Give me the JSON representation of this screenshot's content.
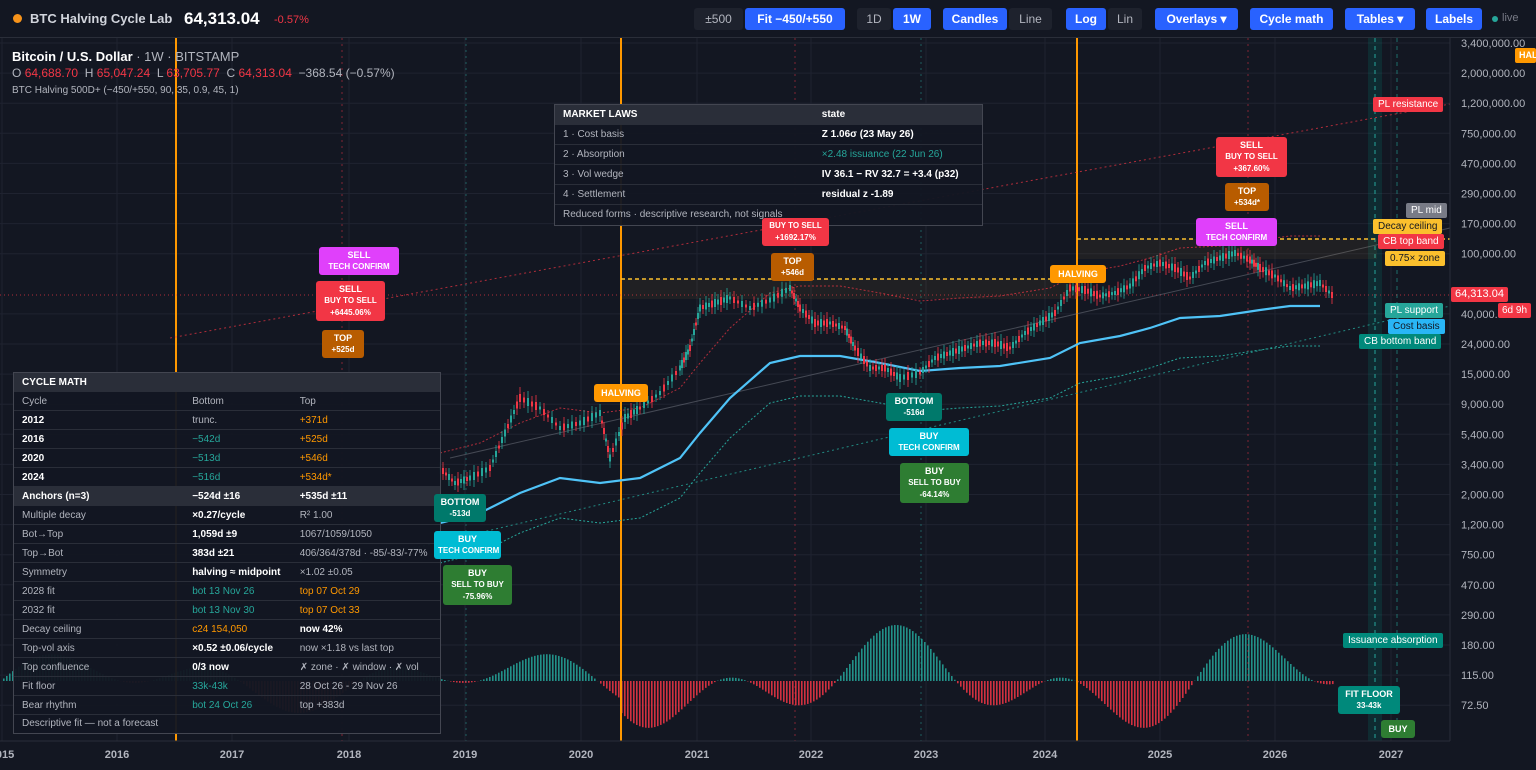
{
  "app": {
    "name": "BTC Halving Cycle Lab",
    "last_price": "64,313.04",
    "last_change": "-0.57%"
  },
  "toolbar": {
    "range_500": "±500",
    "fit": "Fit −450/+550",
    "tf_1d": "1D",
    "tf_1w": "1W",
    "candles": "Candles",
    "line": "Line",
    "log": "Log",
    "lin": "Lin",
    "overlays": "Overlays ▾",
    "cycle_math": "Cycle math",
    "tables": "Tables ▾",
    "labels": "Labels",
    "live": "live"
  },
  "header": {
    "symbol": "Bitcoin / U.S. Dollar",
    "meta": " · 1W · BITSTAMP",
    "o_label": "O",
    "o": "64,688.70",
    "h_label": "H",
    "h": "65,047.24",
    "l_label": "L",
    "l": "63,705.77",
    "c_label": "C",
    "c": "64,313.04",
    "change": "−368.54 (−0.57%)",
    "indicator": "BTC Halving 500D+ (−450/+550, 90, 35, 0.9, 45, 1)"
  },
  "axis": {
    "y_ticks": [
      "3,400,000.00",
      "2,000,000.00",
      "1,200,000.00",
      "750,000.00",
      "470,000.00",
      "290,000.00",
      "170,000.00",
      "100,000.00",
      "64,313.04",
      "40,000.00",
      "24,000.00",
      "15,000.00",
      "9,000.00",
      "5,400.00",
      "3,400.00",
      "2,000.00",
      "1,200.00",
      "750.00",
      "470.00",
      "290.00",
      "180.00",
      "115.00",
      "72.50"
    ],
    "x_ticks": [
      "2015",
      "2016",
      "2017",
      "2018",
      "2019",
      "2020",
      "2021",
      "2022",
      "2023",
      "2024",
      "2025",
      "2026",
      "2027"
    ]
  },
  "right_labels": {
    "pl_resistance": "PL resistance",
    "pl_mid": "PL mid",
    "decay_ceiling": "Decay ceiling",
    "cb_top": "CB top band",
    "zone": "0.75× zone",
    "price": "64,313.04",
    "countdown": "6d 9h",
    "pl_support": "PL support",
    "cost_basis": "Cost basis",
    "cb_bottom": "CB bottom band",
    "issuance": "Issuance absorption",
    "edge_tag": "HAL"
  },
  "market_laws": {
    "header": [
      "MARKET LAWS",
      "state"
    ],
    "rows": [
      [
        "1 · Cost basis",
        "Z 1.06σ (23 May 26)"
      ],
      [
        "2 · Absorption",
        "×2.48 issuance (22 Jun 26)"
      ],
      [
        "3 · Vol wedge",
        "IV 36.1 − RV 32.7 = +3.4 (p32)"
      ],
      [
        "4 · Settlement",
        "residual z -1.89"
      ]
    ],
    "footer": "Reduced forms · descriptive research, not signals"
  },
  "cycle_math": {
    "title": "CYCLE MATH",
    "cols": [
      "Cycle",
      "Bottom",
      "Top"
    ],
    "rows": [
      [
        "2012",
        "trunc.",
        "+371d"
      ],
      [
        "2016",
        "−542d",
        "+525d"
      ],
      [
        "2020",
        "−513d",
        "+546d"
      ],
      [
        "2024",
        "−516d",
        "+534d*"
      ],
      [
        "Anchors (n=3)",
        "−524d ±16",
        "+535d ±11"
      ],
      [
        "Multiple decay",
        "×0.27/cycle",
        "R² 1.00"
      ],
      [
        "Bot→Top",
        "1,059d ±9",
        "1067/1059/1050"
      ],
      [
        "Top→Bot",
        "383d ±21",
        "406/364/378d · -85/-83/-77%"
      ],
      [
        "Symmetry",
        "halving ≈ midpoint",
        "×1.02 ±0.05"
      ],
      [
        "2028 fit",
        "bot 13 Nov 26",
        "top 07 Oct 29"
      ],
      [
        "2032 fit",
        "bot 13 Nov 30",
        "top 07 Oct 33"
      ],
      [
        "Decay ceiling",
        "c24 154,050",
        "now 42%"
      ],
      [
        "Top-vol axis",
        "×0.52 ±0.06/cycle",
        "now ×1.18 vs last top"
      ],
      [
        "Top confluence",
        "0/3 now",
        "✗ zone · ✗ window · ✗ vol"
      ],
      [
        "Fit floor",
        "33k-43k",
        "28 Oct 26 - 29 Nov 26"
      ],
      [
        "Bear rhythm",
        "bot 24 Oct 26",
        "top +383d"
      ]
    ],
    "footer": "Descriptive fit — not a forecast"
  },
  "labels": {
    "sell": "SELL",
    "tech_confirm": "TECH CONFIRM",
    "buy_to_sell": "BUY TO SELL",
    "buy": "BUY",
    "sell_to_buy": "SELL TO BUY",
    "top": "TOP",
    "bottom": "BOTTOM",
    "halving": "HALVING",
    "fit_floor": "FIT FLOOR",
    "fit_floor_range": "33-43k",
    "c2017_gain": "+6445.06%",
    "c2017_top": "+525d",
    "c2021_gain": "+1692.17%",
    "c2021_top": "+546d",
    "c2025_gain": "+367.60%",
    "c2025_top": "+534d*",
    "c2018_bottom": "-513d",
    "c2018_drop": "-75.96%",
    "c2022_bottom": "-516d",
    "c2022_drop": "-64.14%"
  },
  "colors": {
    "up": "#26a69a",
    "down": "#f23645",
    "halving": "#ff9800",
    "cost_basis": "#4fc3f7",
    "accent": "#2962ff"
  }
}
